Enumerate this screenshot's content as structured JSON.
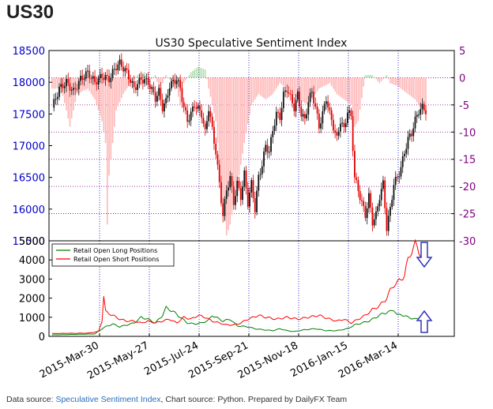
{
  "header": {
    "title": "US30"
  },
  "footer": {
    "prefix": "Data source: ",
    "link": "Speculative Sentiment Index",
    "suffix": ", Chart source: Python. Prepared by DailyFX Team"
  },
  "colors": {
    "price_axis": "#0000cc",
    "ssi_axis": "#800080",
    "ssi_bar": "#ffb6b6",
    "ssi_bar_pos": "#b2dfb2",
    "long": "#008000",
    "short": "#ff0000",
    "arrow": "#3333bb"
  },
  "chart_data": [
    {
      "type": "candlestick",
      "title": "US30 Speculative Sentiment Index",
      "y_left": {
        "ticks": [
          "15500",
          "16000",
          "16500",
          "17000",
          "17500",
          "18000",
          "18500"
        ],
        "range": [
          15500,
          18500
        ]
      },
      "y_right": {
        "ticks": [
          "5",
          "0",
          "-5",
          "-10",
          "-15",
          "-20",
          "-25",
          "-30"
        ],
        "range": [
          -30,
          5
        ]
      },
      "x_ticks": [
        "2015-Mar-30",
        "2015-May-27",
        "2015-Jul-24",
        "2015-Sep-21",
        "2015-Nov-18",
        "2016-Jan-15",
        "2016-Mar-14"
      ],
      "grid": true,
      "price_path": [
        [
          0,
          17600
        ],
        [
          4,
          17900
        ],
        [
          8,
          18000
        ],
        [
          12,
          17850
        ],
        [
          16,
          18050
        ],
        [
          20,
          18150
        ],
        [
          24,
          18000
        ],
        [
          28,
          18100
        ],
        [
          32,
          18050
        ],
        [
          36,
          18250
        ],
        [
          38,
          18300
        ],
        [
          42,
          18150
        ],
        [
          46,
          17900
        ],
        [
          50,
          18050
        ],
        [
          54,
          18000
        ],
        [
          58,
          17750
        ],
        [
          60,
          17850
        ],
        [
          62,
          17600
        ],
        [
          64,
          17700
        ],
        [
          66,
          17950
        ],
        [
          70,
          18050
        ],
        [
          72,
          17900
        ],
        [
          74,
          17600
        ],
        [
          76,
          17400
        ],
        [
          78,
          17500
        ],
        [
          80,
          17650
        ],
        [
          84,
          17500
        ],
        [
          86,
          17200
        ],
        [
          88,
          17600
        ],
        [
          90,
          17250
        ],
        [
          92,
          16900
        ],
        [
          94,
          16400
        ],
        [
          96,
          15900
        ],
        [
          98,
          16300
        ],
        [
          100,
          16500
        ],
        [
          102,
          16100
        ],
        [
          104,
          16400
        ],
        [
          106,
          16200
        ],
        [
          108,
          16550
        ],
        [
          110,
          16100
        ],
        [
          112,
          16400
        ],
        [
          114,
          16000
        ],
        [
          116,
          16500
        ],
        [
          118,
          16700
        ],
        [
          120,
          17000
        ],
        [
          122,
          16900
        ],
        [
          124,
          17250
        ],
        [
          126,
          17500
        ],
        [
          128,
          17450
        ],
        [
          130,
          17800
        ],
        [
          132,
          17900
        ],
        [
          134,
          17750
        ],
        [
          136,
          17600
        ],
        [
          138,
          17800
        ],
        [
          140,
          17500
        ],
        [
          142,
          17400
        ],
        [
          144,
          17700
        ],
        [
          146,
          17850
        ],
        [
          148,
          17600
        ],
        [
          150,
          17300
        ],
        [
          152,
          17500
        ],
        [
          154,
          17750
        ],
        [
          156,
          17500
        ],
        [
          158,
          17300
        ],
        [
          160,
          17100
        ],
        [
          162,
          17400
        ],
        [
          164,
          17250
        ],
        [
          166,
          17550
        ],
        [
          168,
          17450
        ],
        [
          170,
          16500
        ],
        [
          172,
          16300
        ],
        [
          174,
          16100
        ],
        [
          176,
          15900
        ],
        [
          178,
          16200
        ],
        [
          180,
          15800
        ],
        [
          182,
          15900
        ],
        [
          184,
          16200
        ],
        [
          186,
          16400
        ],
        [
          188,
          15700
        ],
        [
          190,
          16000
        ],
        [
          192,
          16400
        ],
        [
          194,
          16500
        ],
        [
          196,
          16650
        ],
        [
          198,
          16900
        ],
        [
          200,
          17100
        ],
        [
          202,
          17200
        ],
        [
          204,
          17400
        ],
        [
          206,
          17550
        ],
        [
          208,
          17600
        ],
        [
          210,
          17550
        ]
      ],
      "ssi_path": [
        [
          0,
          -2
        ],
        [
          5,
          -2
        ],
        [
          8,
          -6
        ],
        [
          10,
          -9
        ],
        [
          14,
          -3
        ],
        [
          20,
          -2
        ],
        [
          24,
          -4
        ],
        [
          28,
          -8
        ],
        [
          30,
          -12
        ],
        [
          31,
          -27
        ],
        [
          32,
          -18
        ],
        [
          34,
          -12
        ],
        [
          36,
          -6
        ],
        [
          40,
          -3
        ],
        [
          44,
          -1
        ],
        [
          48,
          0.5
        ],
        [
          52,
          1
        ],
        [
          54,
          -1
        ],
        [
          58,
          0.5
        ],
        [
          60,
          -2
        ],
        [
          62,
          -1
        ],
        [
          64,
          0.5
        ],
        [
          70,
          -2
        ],
        [
          72,
          -5
        ],
        [
          74,
          -1
        ],
        [
          78,
          1
        ],
        [
          82,
          2
        ],
        [
          86,
          1.5
        ],
        [
          88,
          -2
        ],
        [
          92,
          -8
        ],
        [
          96,
          -24
        ],
        [
          98,
          -29
        ],
        [
          100,
          -27
        ],
        [
          104,
          -20
        ],
        [
          108,
          -12
        ],
        [
          112,
          -5
        ],
        [
          116,
          -3
        ],
        [
          120,
          -4
        ],
        [
          124,
          -3
        ],
        [
          128,
          -1
        ],
        [
          132,
          -2
        ],
        [
          138,
          -4
        ],
        [
          144,
          -5
        ],
        [
          150,
          -2
        ],
        [
          156,
          -1
        ],
        [
          160,
          -3
        ],
        [
          164,
          -4
        ],
        [
          168,
          -5
        ],
        [
          170,
          -9
        ],
        [
          172,
          -8
        ],
        [
          176,
          0.5
        ],
        [
          180,
          0.5
        ],
        [
          184,
          -1
        ],
        [
          188,
          0.5
        ],
        [
          190,
          -1
        ],
        [
          194,
          -1.5
        ],
        [
          196,
          -2
        ],
        [
          200,
          -3
        ],
        [
          204,
          -4
        ],
        [
          206,
          -5
        ],
        [
          208,
          -6
        ],
        [
          210,
          -6.5
        ]
      ]
    },
    {
      "type": "line",
      "y_ticks": [
        "0",
        "1000",
        "2000",
        "3000",
        "4000",
        "5000"
      ],
      "ylim": [
        0,
        5000
      ],
      "legend_position": "top-left",
      "series": [
        {
          "name": "Retail Open Long Positions",
          "color": "#008000",
          "points": [
            [
              0,
              80
            ],
            [
              20,
              120
            ],
            [
              24,
              130
            ],
            [
              28,
              400
            ],
            [
              30,
              500
            ],
            [
              34,
              650
            ],
            [
              38,
              500
            ],
            [
              42,
              600
            ],
            [
              46,
              700
            ],
            [
              50,
              1000
            ],
            [
              54,
              900
            ],
            [
              58,
              700
            ],
            [
              62,
              1100
            ],
            [
              64,
              1500
            ],
            [
              68,
              1300
            ],
            [
              72,
              1000
            ],
            [
              76,
              700
            ],
            [
              80,
              650
            ],
            [
              84,
              700
            ],
            [
              88,
              850
            ],
            [
              90,
              1100
            ],
            [
              92,
              1000
            ],
            [
              96,
              800
            ],
            [
              100,
              900
            ],
            [
              104,
              550
            ],
            [
              110,
              500
            ],
            [
              114,
              400
            ],
            [
              118,
              350
            ],
            [
              124,
              300
            ],
            [
              128,
              400
            ],
            [
              132,
              300
            ],
            [
              136,
              250
            ],
            [
              142,
              350
            ],
            [
              148,
              400
            ],
            [
              154,
              300
            ],
            [
              160,
              300
            ],
            [
              166,
              400
            ],
            [
              170,
              600
            ],
            [
              174,
              700
            ],
            [
              178,
              800
            ],
            [
              182,
              1000
            ],
            [
              186,
              1200
            ],
            [
              190,
              1300
            ],
            [
              192,
              1400
            ],
            [
              194,
              1100
            ],
            [
              196,
              1150
            ],
            [
              200,
              1000
            ],
            [
              204,
              900
            ],
            [
              208,
              950
            ],
            [
              210,
              1000
            ]
          ]
        },
        {
          "name": "Retail Open Short Positions",
          "color": "#ff0000",
          "points": [
            [
              0,
              150
            ],
            [
              20,
              170
            ],
            [
              26,
              250
            ],
            [
              28,
              800
            ],
            [
              29,
              2100
            ],
            [
              30,
              1300
            ],
            [
              34,
              1100
            ],
            [
              38,
              900
            ],
            [
              42,
              800
            ],
            [
              46,
              800
            ],
            [
              50,
              700
            ],
            [
              54,
              800
            ],
            [
              58,
              700
            ],
            [
              62,
              800
            ],
            [
              66,
              900
            ],
            [
              70,
              700
            ],
            [
              74,
              1000
            ],
            [
              78,
              900
            ],
            [
              82,
              1100
            ],
            [
              86,
              1000
            ],
            [
              90,
              800
            ],
            [
              94,
              700
            ],
            [
              98,
              600
            ],
            [
              102,
              600
            ],
            [
              106,
              700
            ],
            [
              110,
              900
            ],
            [
              116,
              1100
            ],
            [
              120,
              1000
            ],
            [
              126,
              900
            ],
            [
              132,
              1000
            ],
            [
              138,
              900
            ],
            [
              144,
              1000
            ],
            [
              150,
              1100
            ],
            [
              156,
              900
            ],
            [
              160,
              800
            ],
            [
              164,
              900
            ],
            [
              168,
              700
            ],
            [
              172,
              900
            ],
            [
              176,
              1100
            ],
            [
              180,
              1400
            ],
            [
              184,
              1600
            ],
            [
              188,
              2000
            ],
            [
              190,
              2400
            ],
            [
              192,
              2700
            ],
            [
              194,
              2800
            ],
            [
              196,
              3000
            ],
            [
              198,
              3200
            ],
            [
              200,
              4000
            ],
            [
              202,
              4500
            ],
            [
              204,
              4800
            ],
            [
              206,
              4500
            ],
            [
              208,
              4200
            ],
            [
              210,
              4100
            ]
          ]
        }
      ]
    }
  ]
}
